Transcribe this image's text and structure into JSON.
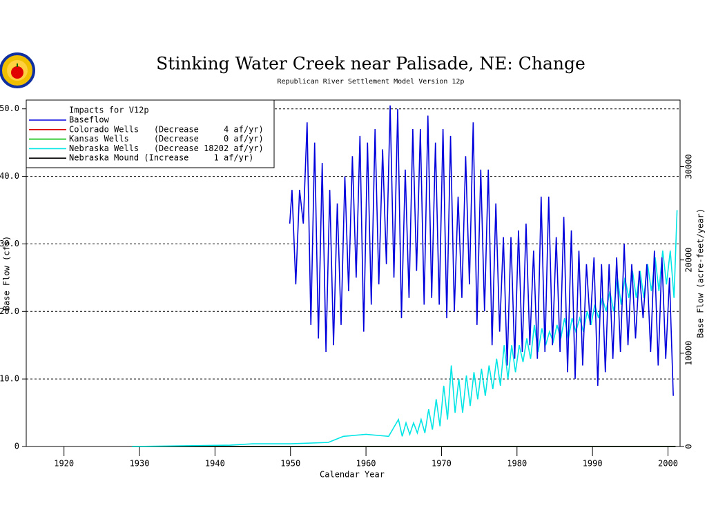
{
  "chart_data": {
    "type": "line",
    "title": "Stinking Water Creek near Palisade, NE: Change",
    "subtitle": "Republican River Settlement Model Version 12p",
    "x_label": "Calendar Year",
    "y_label": "Base Flow (cfs)",
    "y2_label": "Base Flow (acre-feet/year)",
    "legend_title": "Impacts for V12p",
    "legend": "upper left",
    "grid": true,
    "xlim": [
      1915,
      2001.6
    ],
    "xticks": [
      1920,
      1930,
      1940,
      1950,
      1960,
      1970,
      1980,
      1990,
      2000
    ],
    "ylim": [
      0,
      51.3
    ],
    "yticks": [
      0,
      {
        "value": 10,
        "label": "10.0"
      },
      {
        "value": 20,
        "label": "20.0"
      },
      {
        "value": 30,
        "label": "30.0"
      },
      {
        "value": 40,
        "label": "40.0"
      },
      {
        "value": 50,
        "label": "50.0"
      }
    ],
    "y2lim": [
      0,
      37140
    ],
    "y2ticks": [
      0,
      10000,
      20000,
      30000
    ],
    "series": [
      {
        "name": "Baseflow",
        "color": "#0000dd",
        "x": [
          1949.9,
          1950.2,
          1950.7,
          1951.2,
          1951.7,
          1952.2,
          1952.7,
          1953.2,
          1953.7,
          1954.2,
          1954.7,
          1955.2,
          1955.7,
          1956.2,
          1956.7,
          1957.2,
          1957.7,
          1958.2,
          1958.7,
          1959.2,
          1959.7,
          1960.2,
          1960.7,
          1961.2,
          1961.7,
          1962.2,
          1962.7,
          1963.2,
          1963.7,
          1964.2,
          1964.7,
          1965.2,
          1965.7,
          1966.2,
          1966.7,
          1967.2,
          1967.7,
          1968.2,
          1968.7,
          1969.2,
          1969.7,
          1970.2,
          1970.7,
          1971.2,
          1971.7,
          1972.2,
          1972.7,
          1973.2,
          1973.7,
          1974.2,
          1974.7,
          1975.2,
          1975.7,
          1976.2,
          1976.7,
          1977.2,
          1977.7,
          1978.2,
          1978.7,
          1979.2,
          1979.7,
          1980.2,
          1980.7,
          1981.2,
          1981.7,
          1982.2,
          1982.7,
          1983.2,
          1983.7,
          1984.2,
          1984.7,
          1985.2,
          1985.7,
          1986.2,
          1986.7,
          1987.2,
          1987.7,
          1988.2,
          1988.7,
          1989.2,
          1989.7,
          1990.2,
          1990.7,
          1991.2,
          1991.7,
          1992.2,
          1992.7,
          1993.2,
          1993.7,
          1994.2,
          1994.7,
          1995.2,
          1995.7,
          1996.2,
          1996.7,
          1997.2,
          1997.7,
          1998.2,
          1998.7,
          1999.2,
          1999.7,
          2000.2,
          2000.7
        ],
        "values": [
          33,
          38,
          24,
          38,
          33,
          48,
          18,
          45,
          16,
          42,
          14,
          38,
          15,
          36,
          18,
          40,
          23,
          43,
          25,
          46,
          17,
          45,
          21,
          47,
          24,
          44,
          27,
          50.5,
          25,
          50,
          19,
          41,
          22,
          47,
          26,
          47,
          21,
          49,
          22,
          45,
          21,
          47,
          19,
          46,
          20,
          37,
          22,
          43,
          24,
          48,
          18,
          41,
          20,
          41,
          15,
          36,
          17,
          31,
          12,
          31,
          13,
          32,
          14,
          33,
          15,
          29,
          13,
          37,
          14,
          37,
          15,
          31,
          14,
          34,
          11,
          32,
          10,
          29,
          12,
          27,
          18,
          28,
          9,
          27,
          11,
          27,
          13,
          28,
          14,
          30,
          15,
          27,
          16,
          26,
          19,
          27,
          14,
          29,
          12,
          28,
          13,
          25,
          7.5
        ]
      },
      {
        "name": "Colorado Wells   (Decrease     4 af/yr)",
        "color": "#dd0000",
        "x": [
          1929,
          2001
        ],
        "values": [
          0,
          0
        ]
      },
      {
        "name": "Kansas Wells     (Decrease     0 af/yr)",
        "color": "#00bb00",
        "x": [
          1929,
          2001
        ],
        "values": [
          0,
          0
        ]
      },
      {
        "name": "Nebraska Wells   (Decrease 18202 af/yr)",
        "color": "#00e5e5",
        "x": [
          1929,
          1942,
          1945,
          1950,
          1955,
          1957,
          1960,
          1963,
          1964.3,
          1964.8,
          1965.3,
          1965.8,
          1966.3,
          1966.8,
          1967.3,
          1967.8,
          1968.3,
          1968.8,
          1969.3,
          1969.8,
          1970.3,
          1970.8,
          1971.3,
          1971.8,
          1972.3,
          1972.8,
          1973.3,
          1973.8,
          1974.3,
          1974.8,
          1975.3,
          1975.8,
          1976.3,
          1976.8,
          1977.3,
          1977.8,
          1978.3,
          1978.8,
          1979.3,
          1979.8,
          1980.3,
          1980.8,
          1981.3,
          1981.8,
          1982.3,
          1982.8,
          1983.3,
          1983.8,
          1984.3,
          1984.8,
          1985.3,
          1985.8,
          1986.3,
          1986.8,
          1987.3,
          1987.8,
          1988.3,
          1988.8,
          1989.3,
          1989.8,
          1990.3,
          1990.8,
          1991.3,
          1991.8,
          1992.3,
          1992.8,
          1993.3,
          1993.8,
          1994.3,
          1994.8,
          1995.3,
          1995.8,
          1996.3,
          1996.8,
          1997.3,
          1997.8,
          1998.3,
          1998.8,
          1999.3,
          1999.8,
          2000.3,
          2000.8,
          2001.2
        ],
        "values": [
          0,
          0.2,
          0.4,
          0.4,
          0.6,
          1.5,
          1.8,
          1.5,
          4,
          1.5,
          3.5,
          1.8,
          3.5,
          2,
          4,
          2,
          5.5,
          2.5,
          7,
          3,
          9,
          4,
          12,
          5,
          10,
          5,
          10.5,
          6,
          11,
          7,
          11.5,
          7.5,
          12,
          8.5,
          13,
          9,
          15,
          10,
          15,
          11,
          15,
          12.5,
          16,
          13,
          18,
          14,
          17.5,
          15,
          17,
          15.5,
          18,
          16,
          19,
          16,
          19,
          17,
          19,
          17,
          20,
          18,
          21,
          19,
          22,
          20,
          23,
          20,
          25,
          21,
          25,
          22,
          26,
          22,
          26,
          22,
          27,
          23,
          28,
          23,
          29,
          24,
          29,
          22,
          35
        ]
      },
      {
        "name": "Nebraska Mound (Increase     1 af/yr)",
        "color": "#000000",
        "x": [
          1929,
          2001
        ],
        "values": [
          0,
          0
        ]
      }
    ]
  }
}
